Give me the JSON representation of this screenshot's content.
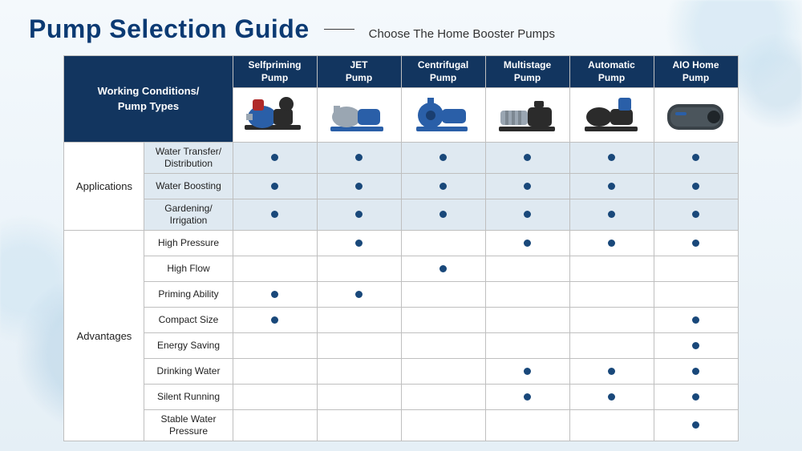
{
  "colors": {
    "title": "#0b3a73",
    "header_bg": "#12355f",
    "header_text": "#ffffff",
    "section_bg": "#dfe9f1",
    "row_bg": "#ffffff",
    "border": "#bfbfbf",
    "dot": "#19487a"
  },
  "title": "Pump Selection Guide",
  "subtitle": "Choose The Home Booster Pumps",
  "corner_label_line1": "Working Conditions/",
  "corner_label_line2": "Pump Types",
  "pump_types": [
    {
      "line1": "Selfpriming",
      "line2": "Pump",
      "icon": "selfpriming"
    },
    {
      "line1": "JET",
      "line2": "Pump",
      "icon": "jet"
    },
    {
      "line1": "Centrifugal",
      "line2": "Pump",
      "icon": "centrifugal"
    },
    {
      "line1": "Multistage",
      "line2": "Pump",
      "icon": "multistage"
    },
    {
      "line1": "Automatic",
      "line2": "Pump",
      "icon": "automatic"
    },
    {
      "line1": "AIO Home",
      "line2": "Pump",
      "icon": "aio"
    }
  ],
  "groups": [
    {
      "name": "Applications",
      "rows": [
        {
          "label_line1": "Water Transfer/",
          "label_line2": "Distribution",
          "dots": [
            1,
            1,
            1,
            1,
            1,
            1
          ],
          "shaded": true
        },
        {
          "label_line1": "Water Boosting",
          "label_line2": "",
          "dots": [
            1,
            1,
            1,
            1,
            1,
            1
          ],
          "shaded": true
        },
        {
          "label_line1": "Gardening/",
          "label_line2": "Irrigation",
          "dots": [
            1,
            1,
            1,
            1,
            1,
            1
          ],
          "shaded": true
        }
      ]
    },
    {
      "name": "Advantages",
      "rows": [
        {
          "label_line1": "High Pressure",
          "label_line2": "",
          "dots": [
            0,
            1,
            0,
            1,
            1,
            1
          ],
          "shaded": false
        },
        {
          "label_line1": "High Flow",
          "label_line2": "",
          "dots": [
            0,
            0,
            1,
            0,
            0,
            0
          ],
          "shaded": false
        },
        {
          "label_line1": "Priming Ability",
          "label_line2": "",
          "dots": [
            1,
            1,
            0,
            0,
            0,
            0
          ],
          "shaded": false
        },
        {
          "label_line1": "Compact Size",
          "label_line2": "",
          "dots": [
            1,
            0,
            0,
            0,
            0,
            1
          ],
          "shaded": false
        },
        {
          "label_line1": "Energy Saving",
          "label_line2": "",
          "dots": [
            0,
            0,
            0,
            0,
            0,
            1
          ],
          "shaded": false
        },
        {
          "label_line1": "Drinking Water",
          "label_line2": "",
          "dots": [
            0,
            0,
            0,
            1,
            1,
            1
          ],
          "shaded": false
        },
        {
          "label_line1": "Silent Running",
          "label_line2": "",
          "dots": [
            0,
            0,
            0,
            1,
            1,
            1
          ],
          "shaded": false
        },
        {
          "label_line1": "Stable Water",
          "label_line2": "Pressure",
          "dots": [
            0,
            0,
            0,
            0,
            0,
            1
          ],
          "shaded": false
        }
      ]
    }
  ]
}
